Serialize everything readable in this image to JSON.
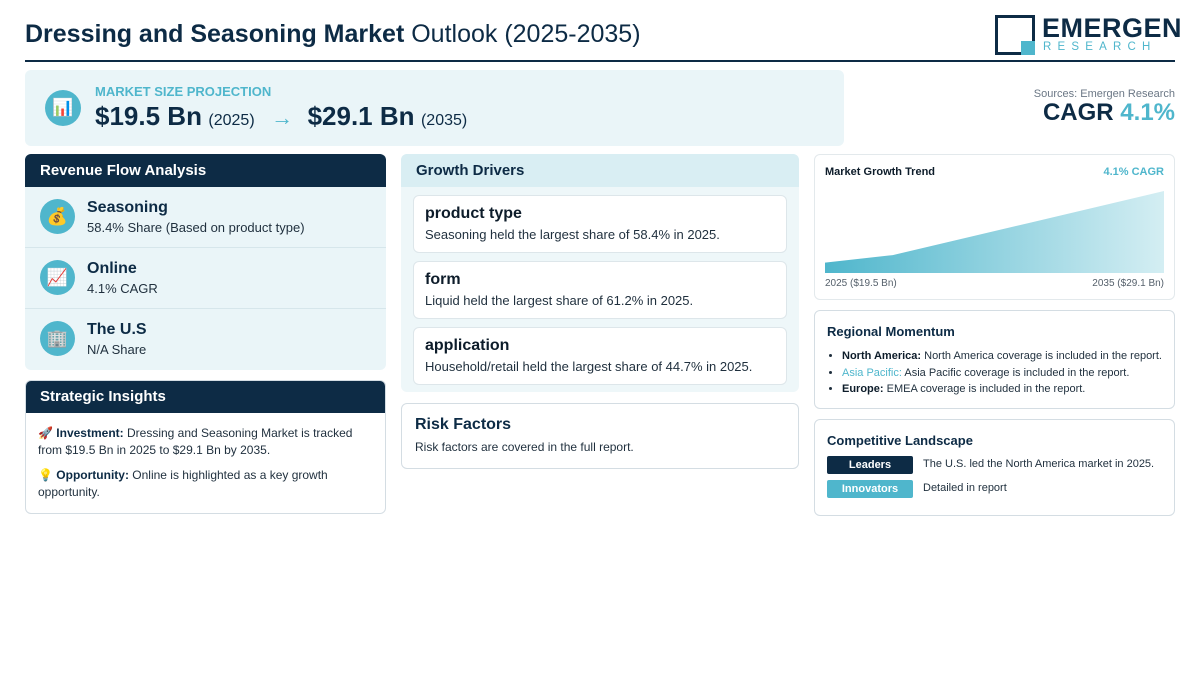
{
  "header": {
    "title_bold": "Dressing and Seasoning Market",
    "title_rest": " Outlook (2025-2035)",
    "logo_name": "EMERGEN",
    "logo_sub": "RESEARCH"
  },
  "market_size": {
    "icon": "bar-chart-icon",
    "label": "MARKET SIZE PROJECTION",
    "start_value": "$19.5 Bn",
    "start_year": "(2025)",
    "arrow": "→",
    "end_value": "$29.1 Bn",
    "end_year": "(2035)"
  },
  "sources": "Sources: Emergen Research",
  "cagr": {
    "label": "CAGR",
    "value": "4.1%"
  },
  "revenue_flow": {
    "title": "Revenue Flow Analysis",
    "items": [
      {
        "icon": "money-bag-icon",
        "title": "Seasoning",
        "sub": "58.4% Share (Based on product type)"
      },
      {
        "icon": "trend-up-icon",
        "title": "Online",
        "sub": "4.1% CAGR"
      },
      {
        "icon": "building-icon",
        "title": "The U.S",
        "sub": "N/A Share"
      }
    ]
  },
  "strategic": {
    "title": "Strategic Insights",
    "items": [
      {
        "icon": "rocket-icon",
        "label": "Investment:",
        "text": " Dressing and Seasoning Market is tracked from $19.5 Bn in 2025 to $29.1 Bn by 2035."
      },
      {
        "icon": "lightbulb-icon",
        "label": "Opportunity:",
        "text": " Online is highlighted as a key growth opportunity."
      }
    ]
  },
  "drivers": {
    "title": "Growth Drivers",
    "items": [
      {
        "title": "product type",
        "text": "Seasoning held the largest share of 58.4% in 2025."
      },
      {
        "title": "form",
        "text": "Liquid held the largest share of 61.2% in 2025."
      },
      {
        "title": "application",
        "text": "Household/retail held the largest share of 44.7% in 2025."
      }
    ]
  },
  "risk": {
    "title": "Risk Factors",
    "text": "Risk factors are covered in the full report."
  },
  "trend": {
    "title": "Market Growth Trend",
    "cagr_label": "4.1% CAGR",
    "start_label": "2025 ($19.5 Bn)",
    "end_label": "2035 ($29.1 Bn)"
  },
  "chart_data": {
    "type": "area",
    "x": [
      2025,
      2027,
      2031,
      2035
    ],
    "values": [
      19.5,
      20.5,
      24.8,
      29.1
    ],
    "title": "Market Growth Trend",
    "xlabel": "",
    "ylabel": "",
    "ylim": [
      18.1,
      29.1
    ],
    "grid": false,
    "colors": [
      "#4fb6cc",
      "#d4eef3"
    ]
  },
  "regional": {
    "title": "Regional Momentum",
    "items": [
      {
        "name": "North America:",
        "text": " North America coverage is included in the report.",
        "accent": false
      },
      {
        "name": "Asia Pacific:",
        "text": " Asia Pacific coverage is included in the report.",
        "accent": true
      },
      {
        "name": "Europe:",
        "text": " EMEA coverage is included in the report.",
        "accent": false
      }
    ]
  },
  "competitive": {
    "title": "Competitive Landscape",
    "rows": [
      {
        "badge": "Leaders",
        "text": "The U.S. led the North America market in 2025.",
        "color": "#0d2b45"
      },
      {
        "badge": "Innovators",
        "text": "Detailed in report",
        "color": "#4fb6cc"
      }
    ]
  }
}
